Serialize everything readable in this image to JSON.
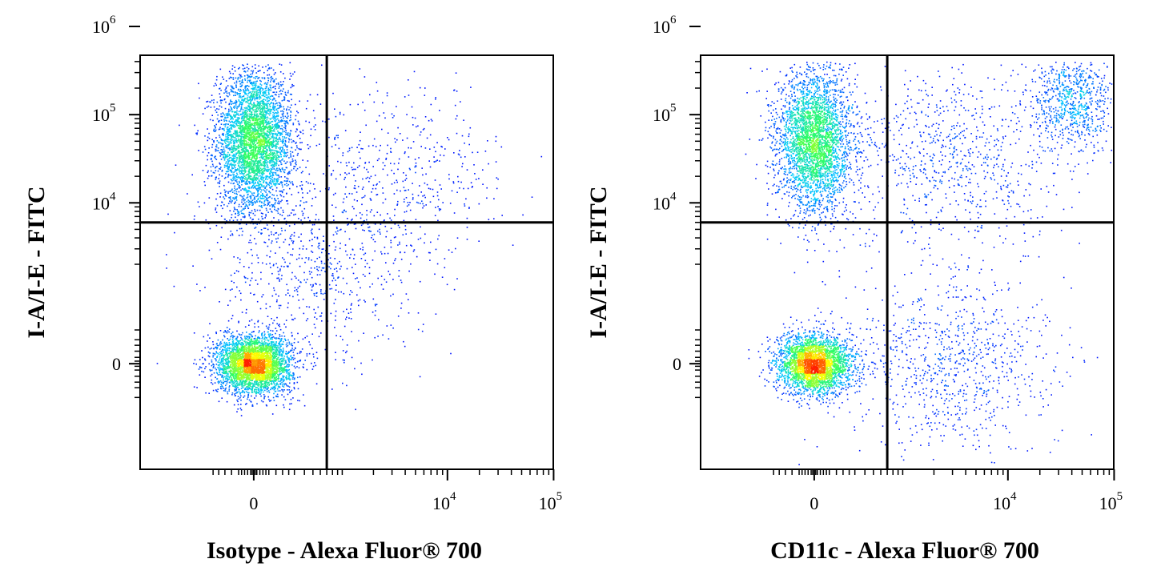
{
  "chart_data": [
    {
      "type": "scatter",
      "subtype": "flow-cytometry-density-dot-plot",
      "xlabel": "Isotype - Alexa Fluor® 700",
      "ylabel": "I-A/I-E - FITC",
      "x_scale": "biexponential",
      "y_scale": "biexponential",
      "x_ticks": [
        {
          "value": 0,
          "label": "0"
        },
        {
          "value": 10000,
          "label": "10",
          "exp": "4"
        },
        {
          "value": 100000,
          "label": "10",
          "exp": "5"
        }
      ],
      "y_ticks": [
        {
          "value": 0,
          "label": "0"
        },
        {
          "value": 10000,
          "label": "10",
          "exp": "4"
        },
        {
          "value": 100000,
          "label": "10",
          "exp": "5"
        },
        {
          "value": 1000000,
          "label": "10",
          "exp": "6"
        }
      ],
      "quadrant_gate": {
        "x": 700,
        "y": 6000
      },
      "density_colormap": [
        "#0000ff",
        "#00c8ff",
        "#30ff60",
        "#ffff00",
        "#ff2000"
      ],
      "populations": [
        {
          "x": 0,
          "y": 50000,
          "weight": 0.46
        },
        {
          "x": 0,
          "y": 0,
          "weight": 0.41
        },
        {
          "x": 500,
          "y": 1500,
          "weight": 0.07
        },
        {
          "x": 3000,
          "y": 20000,
          "weight": 0.06
        }
      ]
    },
    {
      "type": "scatter",
      "subtype": "flow-cytometry-density-dot-plot",
      "xlabel": "CD11c - Alexa Fluor® 700",
      "ylabel": "I-A/I-E - FITC",
      "x_scale": "biexponential",
      "y_scale": "biexponential",
      "x_ticks": [
        {
          "value": 0,
          "label": "0"
        },
        {
          "value": 10000,
          "label": "10",
          "exp": "4"
        },
        {
          "value": 100000,
          "label": "10",
          "exp": "5"
        }
      ],
      "y_ticks": [
        {
          "value": 0,
          "label": "0"
        },
        {
          "value": 10000,
          "label": "10",
          "exp": "4"
        },
        {
          "value": 100000,
          "label": "10",
          "exp": "5"
        },
        {
          "value": 1000000,
          "label": "10",
          "exp": "6"
        }
      ],
      "quadrant_gate": {
        "x": 700,
        "y": 6000
      },
      "density_colormap": [
        "#0000ff",
        "#00c8ff",
        "#30ff60",
        "#ffff00",
        "#ff2000"
      ],
      "populations": [
        {
          "x": 0,
          "y": 50000,
          "weight": 0.38
        },
        {
          "x": 0,
          "y": 0,
          "weight": 0.34
        },
        {
          "x": 40000,
          "y": 150000,
          "weight": 0.09
        },
        {
          "x": 2500,
          "y": 0,
          "weight": 0.1
        },
        {
          "x": 3000,
          "y": 30000,
          "weight": 0.09
        }
      ]
    }
  ]
}
